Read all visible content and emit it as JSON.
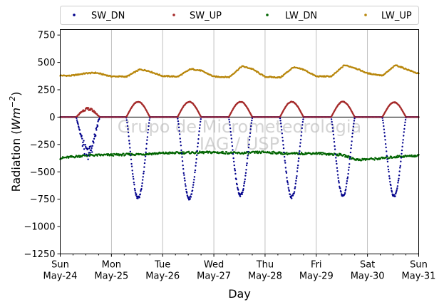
{
  "chart_data": {
    "type": "scatter",
    "xlabel": "Day",
    "ylabel_main": "Radiation (",
    "ylabel_unit": "Wm",
    "ylabel_exp": "−2",
    "ylabel_close": ")",
    "ylim": [
      -1250,
      800
    ],
    "yticks": [
      750,
      500,
      250,
      0,
      -250,
      -500,
      -750,
      -1000,
      -1250
    ],
    "ytick_labels": [
      "750",
      "500",
      "250",
      "0",
      "−250",
      "−500",
      "−750",
      "−1000",
      "−1250"
    ],
    "xlim": [
      "2020-05-24",
      "2020-05-31"
    ],
    "x_ticks": [
      {
        "day": "Sun",
        "date": "May-24"
      },
      {
        "day": "Mon",
        "date": "May-25"
      },
      {
        "day": "Tue",
        "date": "May-26"
      },
      {
        "day": "Wed",
        "date": "May-27"
      },
      {
        "day": "Thu",
        "date": "May-28"
      },
      {
        "day": "Fri",
        "date": "May-29"
      },
      {
        "day": "Sat",
        "date": "May-30"
      },
      {
        "day": "Sun",
        "date": "May-31"
      }
    ],
    "grid": "vertical",
    "zero_line": true,
    "legend_position": "top",
    "watermark_lines": [
      "Grupo de Micrometeorologia",
      "IAG / USP"
    ],
    "series": [
      {
        "name": "SW_DN",
        "color": "#00008b",
        "daily_min": [
          -330,
          -740,
          -745,
          -715,
          -730,
          -720,
          -720
        ],
        "noon_offset_hours": [
          13,
          12.5,
          12.5,
          12.5,
          12.5,
          12.5,
          12.5
        ]
      },
      {
        "name": "SW_UP",
        "color": "#a52a2a",
        "daily_max": [
          75,
          140,
          140,
          140,
          140,
          140,
          135
        ]
      },
      {
        "name": "LW_DN",
        "color": "#006400",
        "points": [
          [
            0,
            -375
          ],
          [
            0.5,
            -350
          ],
          [
            1,
            -345
          ],
          [
            1.5,
            -340
          ],
          [
            2,
            -330
          ],
          [
            2.5,
            -325
          ],
          [
            3,
            -322
          ],
          [
            3.5,
            -330
          ],
          [
            4,
            -320
          ],
          [
            4.5,
            -335
          ],
          [
            5,
            -330
          ],
          [
            5.5,
            -345
          ],
          [
            5.8,
            -390
          ],
          [
            6.2,
            -380
          ],
          [
            6.6,
            -360
          ],
          [
            7,
            -352
          ]
        ]
      },
      {
        "name": "LW_UP",
        "color": "#b8860b",
        "points": [
          [
            0,
            380
          ],
          [
            0.2,
            378
          ],
          [
            0.5,
            400
          ],
          [
            0.7,
            405
          ],
          [
            1,
            372
          ],
          [
            1.3,
            370
          ],
          [
            1.55,
            435
          ],
          [
            1.7,
            425
          ],
          [
            2,
            375
          ],
          [
            2.3,
            370
          ],
          [
            2.55,
            440
          ],
          [
            2.75,
            425
          ],
          [
            3,
            370
          ],
          [
            3.3,
            365
          ],
          [
            3.55,
            465
          ],
          [
            3.75,
            440
          ],
          [
            4,
            368
          ],
          [
            4.3,
            362
          ],
          [
            4.55,
            455
          ],
          [
            4.75,
            435
          ],
          [
            5,
            372
          ],
          [
            5.3,
            372
          ],
          [
            5.55,
            475
          ],
          [
            5.75,
            450
          ],
          [
            6,
            400
          ],
          [
            6.3,
            380
          ],
          [
            6.55,
            475
          ],
          [
            6.75,
            440
          ],
          [
            7,
            395
          ]
        ]
      }
    ]
  }
}
